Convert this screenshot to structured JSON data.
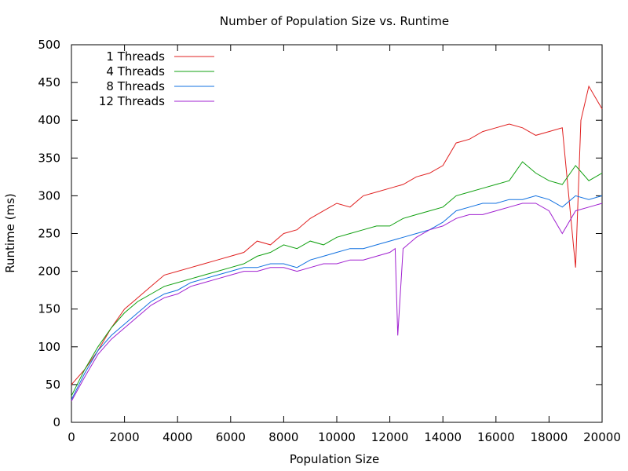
{
  "chart_data": {
    "type": "line",
    "title": "Number of Population Size vs. Runtime",
    "xlabel": "Population Size",
    "ylabel": "Runtime (ms)",
    "xlim": [
      0,
      20000
    ],
    "ylim": [
      0,
      500
    ],
    "xticks": [
      0,
      2000,
      4000,
      6000,
      8000,
      10000,
      12000,
      14000,
      16000,
      18000,
      20000
    ],
    "yticks": [
      0,
      50,
      100,
      150,
      200,
      250,
      300,
      350,
      400,
      450,
      500
    ],
    "grid": false,
    "legend_position": "top-left",
    "series": [
      {
        "name": "1 Threads",
        "color": "#e02020",
        "x": [
          0,
          500,
          1000,
          1500,
          2000,
          2500,
          3000,
          3500,
          4000,
          4500,
          5000,
          5500,
          6000,
          6500,
          7000,
          7500,
          8000,
          8500,
          9000,
          9500,
          10000,
          10500,
          11000,
          11500,
          12000,
          12500,
          13000,
          13500,
          14000,
          14500,
          15000,
          15500,
          16000,
          16500,
          17000,
          17500,
          18000,
          18500,
          19000,
          19200,
          19500,
          20000
        ],
        "y": [
          50,
          70,
          95,
          125,
          150,
          165,
          180,
          195,
          200,
          205,
          210,
          215,
          220,
          225,
          240,
          235,
          250,
          255,
          270,
          280,
          290,
          285,
          300,
          305,
          310,
          315,
          325,
          330,
          340,
          370,
          375,
          385,
          390,
          395,
          390,
          380,
          385,
          390,
          205,
          400,
          445,
          415
        ]
      },
      {
        "name": "4 Threads",
        "color": "#10a010",
        "x": [
          0,
          500,
          1000,
          1500,
          2000,
          2500,
          3000,
          3500,
          4000,
          4500,
          5000,
          5500,
          6000,
          6500,
          7000,
          7500,
          8000,
          8500,
          9000,
          9500,
          10000,
          10500,
          11000,
          11500,
          12000,
          12500,
          13000,
          13500,
          14000,
          14500,
          15000,
          15500,
          16000,
          16500,
          17000,
          17500,
          18000,
          18500,
          19000,
          19500,
          20000
        ],
        "y": [
          35,
          70,
          100,
          125,
          145,
          160,
          170,
          180,
          185,
          190,
          195,
          200,
          205,
          210,
          220,
          225,
          235,
          230,
          240,
          235,
          245,
          250,
          255,
          260,
          260,
          270,
          275,
          280,
          285,
          300,
          305,
          310,
          315,
          320,
          345,
          330,
          320,
          315,
          340,
          320,
          330
        ]
      },
      {
        "name": "8 Threads",
        "color": "#1070e0",
        "x": [
          0,
          500,
          1000,
          1500,
          2000,
          2500,
          3000,
          3500,
          4000,
          4500,
          5000,
          5500,
          6000,
          6500,
          7000,
          7500,
          8000,
          8500,
          9000,
          9500,
          10000,
          10500,
          11000,
          11500,
          12000,
          12500,
          13000,
          13500,
          14000,
          14500,
          15000,
          15500,
          16000,
          16500,
          17000,
          17500,
          18000,
          18500,
          19000,
          19500,
          20000
        ],
        "y": [
          30,
          65,
          95,
          115,
          130,
          145,
          160,
          170,
          175,
          185,
          190,
          195,
          200,
          205,
          205,
          210,
          210,
          205,
          215,
          220,
          225,
          230,
          230,
          235,
          240,
          245,
          250,
          255,
          265,
          280,
          285,
          290,
          290,
          295,
          295,
          300,
          295,
          285,
          300,
          295,
          300
        ]
      },
      {
        "name": "12 Threads",
        "color": "#a020d0",
        "x": [
          0,
          500,
          1000,
          1500,
          2000,
          2500,
          3000,
          3500,
          4000,
          4500,
          5000,
          5500,
          6000,
          6500,
          7000,
          7500,
          8000,
          8500,
          9000,
          9500,
          10000,
          10500,
          11000,
          11500,
          12000,
          12200,
          12300,
          12500,
          13000,
          13500,
          14000,
          14500,
          15000,
          15500,
          16000,
          16500,
          17000,
          17500,
          18000,
          18500,
          19000,
          19500,
          20000
        ],
        "y": [
          28,
          60,
          90,
          110,
          125,
          140,
          155,
          165,
          170,
          180,
          185,
          190,
          195,
          200,
          200,
          205,
          205,
          200,
          205,
          210,
          210,
          215,
          215,
          220,
          225,
          230,
          115,
          230,
          245,
          255,
          260,
          270,
          275,
          275,
          280,
          285,
          290,
          290,
          280,
          250,
          280,
          285,
          290
        ]
      }
    ]
  }
}
